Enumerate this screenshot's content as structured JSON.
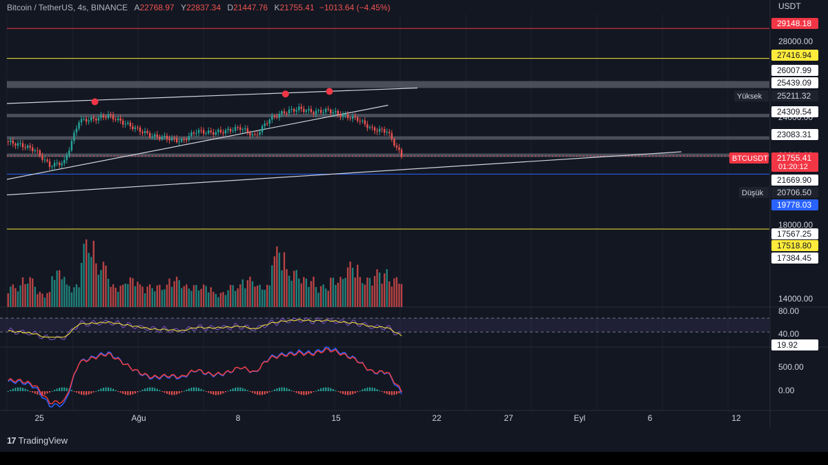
{
  "header": {
    "symbol": "Bitcoin / TetherUS, 4s, BINANCE",
    "o_label": "A",
    "o_value": "22768.97",
    "h_label": "Y",
    "h_value": "22837.34",
    "l_label": "D",
    "l_value": "21447.76",
    "c_label": "K",
    "c_value": "21755.41",
    "change": "−1013.64 (−4.45%)"
  },
  "axis": {
    "currency": "USDT",
    "price_ticks": [
      "28000.00",
      "24000.00",
      "22000.00",
      "18000.00",
      "14000.00"
    ],
    "rsi_ticks": [
      "80.00",
      "40.00"
    ],
    "macd_ticks": [
      "500.00",
      "0.00"
    ],
    "date_ticks": [
      "25",
      "Ağu",
      "8",
      "15",
      "22",
      "27",
      "Eyl",
      "6",
      "12"
    ]
  },
  "price_labels": [
    {
      "text": "29148.18",
      "bg": "#f23645",
      "fg": "#ffffff"
    },
    {
      "text": "27416.94",
      "bg": "#ffeb3b",
      "fg": "#131722"
    },
    {
      "text": "26007.99",
      "bg": "#ffffff",
      "fg": "#131722"
    },
    {
      "text": "25439.09",
      "bg": "#ffffff",
      "fg": "#131722"
    },
    {
      "text": "25211.32",
      "bg": "#1e222d",
      "fg": "#d1d4dc",
      "tag": "Yüksek"
    },
    {
      "text": "24309.54",
      "bg": "#ffffff",
      "fg": "#131722"
    },
    {
      "text": "23083.31",
      "bg": "#ffffff",
      "fg": "#131722"
    },
    {
      "text": "21755.41",
      "bg": "#f23645",
      "fg": "#ffffff",
      "tag": "BTCUSDT",
      "sub": "01:20:12"
    },
    {
      "text": "21669.90",
      "bg": "#ffffff",
      "fg": "#131722"
    },
    {
      "text": "20706.50",
      "bg": "#1e222d",
      "fg": "#d1d4dc",
      "tag": "Düşük"
    },
    {
      "text": "19778.03",
      "bg": "#2962ff",
      "fg": "#ffffff"
    },
    {
      "text": "17567.25",
      "bg": "#ffffff",
      "fg": "#131722"
    },
    {
      "text": "17518.80",
      "bg": "#ffeb3b",
      "fg": "#131722"
    },
    {
      "text": "17384.45",
      "bg": "#ffffff",
      "fg": "#131722"
    },
    {
      "text": "19.92",
      "bg": "#ffffff",
      "fg": "#131722"
    }
  ],
  "footer": {
    "logo": "17",
    "brand": "TradingView"
  },
  "colors": {
    "up": "#26a69a",
    "down": "#ef5350",
    "rsi": "#7e57c2",
    "rsi_ma": "#ffeb3b",
    "macd": "#2962ff",
    "signal": "#ef3b3b",
    "bg": "#131722"
  },
  "chart_data": {
    "type": "candlestick",
    "symbol": "BTCUSDT",
    "interval": "4s",
    "x_range": [
      "2022-07-23",
      "2022-09-13"
    ],
    "y_range": [
      13000,
      30000
    ],
    "close_path": [
      {
        "date": "2022-07-23",
        "close": 22600
      },
      {
        "date": "2022-07-24",
        "close": 22400
      },
      {
        "date": "2022-07-25",
        "close": 22100
      },
      {
        "date": "2022-07-26",
        "close": 21200
      },
      {
        "date": "2022-07-27",
        "close": 21400
      },
      {
        "date": "2022-07-28",
        "close": 23800
      },
      {
        "date": "2022-07-29",
        "close": 23900
      },
      {
        "date": "2022-07-30",
        "close": 24100
      },
      {
        "date": "2022-07-31",
        "close": 23700
      },
      {
        "date": "2022-08-01",
        "close": 23300
      },
      {
        "date": "2022-08-02",
        "close": 22900
      },
      {
        "date": "2022-08-03",
        "close": 22800
      },
      {
        "date": "2022-08-04",
        "close": 22600
      },
      {
        "date": "2022-08-05",
        "close": 23200
      },
      {
        "date": "2022-08-06",
        "close": 23100
      },
      {
        "date": "2022-08-07",
        "close": 23200
      },
      {
        "date": "2022-08-08",
        "close": 23400
      },
      {
        "date": "2022-08-09",
        "close": 22900
      },
      {
        "date": "2022-08-10",
        "close": 23900
      },
      {
        "date": "2022-08-11",
        "close": 24300
      },
      {
        "date": "2022-08-12",
        "close": 24500
      },
      {
        "date": "2022-08-13",
        "close": 24300
      },
      {
        "date": "2022-08-14",
        "close": 24400
      },
      {
        "date": "2022-08-15",
        "close": 24100
      },
      {
        "date": "2022-08-16",
        "close": 23900
      },
      {
        "date": "2022-08-17",
        "close": 23300
      },
      {
        "date": "2022-08-18",
        "close": 23200
      },
      {
        "date": "2022-08-19",
        "close": 21755.41
      }
    ],
    "volume_scale": [
      0,
      1
    ],
    "volume": [
      0.3,
      0.4,
      0.2,
      0.5,
      0.3,
      0.9,
      0.6,
      0.3,
      0.4,
      0.3,
      0.3,
      0.4,
      0.3,
      0.3,
      0.2,
      0.3,
      0.4,
      0.3,
      0.8,
      0.5,
      0.4,
      0.3,
      0.4,
      0.6,
      0.4,
      0.5,
      0.4,
      0.7
    ],
    "horizontal_levels": [
      {
        "price": 29148.18,
        "color": "#f23645"
      },
      {
        "price": 27416.94,
        "color": "#ffeb3b"
      },
      {
        "price": 20706.5,
        "color": "#2962ff"
      },
      {
        "price": 17518.8,
        "color": "#ffeb3b"
      }
    ],
    "rsi": {
      "levels": [
        80,
        40
      ],
      "last": 19.92
    },
    "macd": {
      "ticks": [
        500,
        0
      ]
    }
  }
}
